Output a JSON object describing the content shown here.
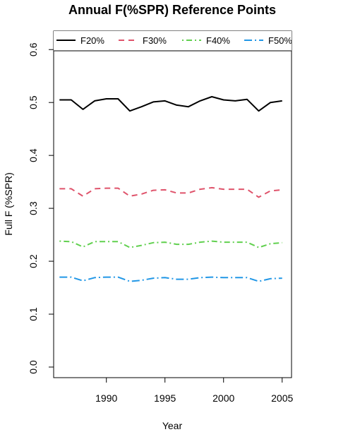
{
  "chart_data": {
    "type": "line",
    "title": "Annual F(%SPR) Reference Points",
    "xlabel": "Year",
    "ylabel": "Full F (%SPR)",
    "xlim": [
      1985.5,
      2005.8
    ],
    "ylim": [
      -0.02,
      0.635
    ],
    "x_ticks": [
      1990,
      1995,
      2000,
      2005
    ],
    "x_tick_labels": [
      "1990",
      "1995",
      "2000",
      "2005"
    ],
    "y_ticks": [
      0.0,
      0.1,
      0.2,
      0.3,
      0.4,
      0.5,
      0.6
    ],
    "y_tick_labels": [
      "0.0",
      "0.1",
      "0.2",
      "0.3",
      "0.4",
      "0.5",
      "0.6"
    ],
    "grid": false,
    "legend_position": "top",
    "x": [
      1986,
      1987,
      1988,
      1989,
      1990,
      1991,
      1992,
      1993,
      1994,
      1995,
      1996,
      1997,
      1998,
      1999,
      2000,
      2001,
      2002,
      2003,
      2004,
      2005
    ],
    "series": [
      {
        "name": "F20%",
        "color": "#000000",
        "dash": "solid",
        "values": [
          0.505,
          0.505,
          0.487,
          0.503,
          0.507,
          0.507,
          0.484,
          0.492,
          0.501,
          0.503,
          0.495,
          0.492,
          0.503,
          0.511,
          0.505,
          0.503,
          0.506,
          0.484,
          0.5,
          0.503
        ]
      },
      {
        "name": "F30%",
        "color": "#DF536B",
        "dash": "dashed",
        "values": [
          0.337,
          0.337,
          0.323,
          0.337,
          0.338,
          0.338,
          0.323,
          0.327,
          0.334,
          0.335,
          0.329,
          0.329,
          0.336,
          0.339,
          0.336,
          0.336,
          0.336,
          0.321,
          0.333,
          0.335
        ]
      },
      {
        "name": "F40%",
        "color": "#61D04F",
        "dash": "dotdash",
        "values": [
          0.238,
          0.237,
          0.227,
          0.237,
          0.237,
          0.237,
          0.226,
          0.23,
          0.235,
          0.236,
          0.232,
          0.232,
          0.236,
          0.238,
          0.236,
          0.236,
          0.236,
          0.226,
          0.233,
          0.235
        ]
      },
      {
        "name": "F50%",
        "color": "#2297E6",
        "dash": "longdash-dot",
        "values": [
          0.17,
          0.17,
          0.163,
          0.169,
          0.17,
          0.17,
          0.162,
          0.164,
          0.168,
          0.169,
          0.166,
          0.166,
          0.169,
          0.17,
          0.169,
          0.169,
          0.169,
          0.162,
          0.167,
          0.168
        ]
      }
    ]
  }
}
